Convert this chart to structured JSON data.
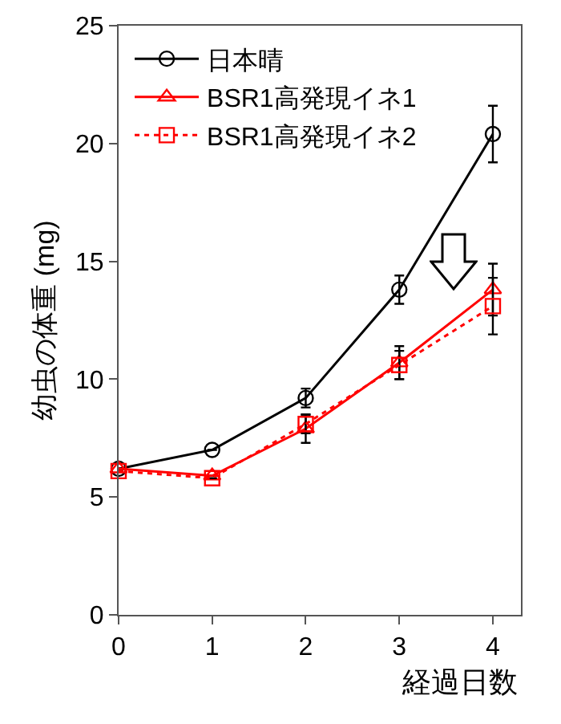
{
  "chart_data": {
    "type": "line",
    "xlabel": "経過日数",
    "ylabel": "幼虫の体重 (mg)",
    "x": [
      0,
      1,
      2,
      3,
      4
    ],
    "xlim": [
      0,
      4.3
    ],
    "xticks": [
      0,
      1,
      2,
      3,
      4
    ],
    "ylim": [
      0,
      25
    ],
    "yticks": [
      0,
      5,
      10,
      15,
      20,
      25
    ],
    "grid": false,
    "legend": "top left",
    "series": [
      {
        "name": "日本晴",
        "color": "#000000",
        "marker": "circle",
        "line_style": "solid",
        "values": [
          6.2,
          7.0,
          9.2,
          13.8,
          20.4
        ],
        "errors": [
          null,
          null,
          0.4,
          0.6,
          1.2
        ]
      },
      {
        "name": "BSR1高発現イネ1",
        "color": "#ff0000",
        "marker": "triangle",
        "line_style": "solid",
        "values": [
          6.2,
          5.9,
          7.9,
          10.7,
          13.8
        ],
        "errors": [
          null,
          null,
          0.6,
          0.7,
          1.1
        ]
      },
      {
        "name": "BSR1高発現イネ2",
        "color": "#ff0000",
        "marker": "square",
        "line_style": "dotted",
        "values": [
          6.1,
          5.8,
          8.1,
          10.6,
          13.1
        ],
        "errors": [
          null,
          null,
          0.4,
          0.6,
          1.2
        ]
      }
    ]
  }
}
